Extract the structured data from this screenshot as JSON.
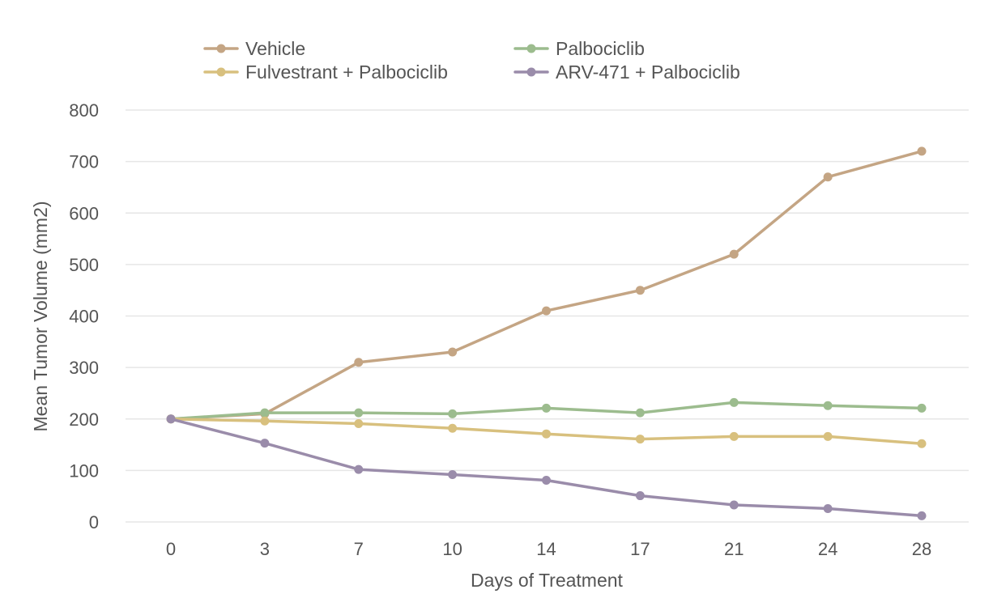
{
  "chart_data": {
    "type": "line",
    "title": "",
    "xlabel": "Days of Treatment",
    "ylabel": "Mean Tumor Volume (mm2)",
    "categories": [
      "0",
      "3",
      "7",
      "10",
      "14",
      "17",
      "21",
      "24",
      "28"
    ],
    "ylim": [
      0,
      800
    ],
    "yticks": [
      0,
      100,
      200,
      300,
      400,
      500,
      600,
      700,
      800
    ],
    "grid": true,
    "legend_position": "top",
    "series": [
      {
        "name": "Vehicle",
        "color": "#c4a584",
        "values": [
          200,
          210,
          310,
          330,
          410,
          450,
          520,
          670,
          720
        ]
      },
      {
        "name": "Palbociclib",
        "color": "#9cbc8e",
        "values": [
          200,
          212,
          212,
          210,
          221,
          212,
          232,
          226,
          221
        ]
      },
      {
        "name": "Fulvestrant + Palbociclib",
        "color": "#d8c07e",
        "values": [
          200,
          196,
          191,
          182,
          171,
          161,
          166,
          166,
          152
        ]
      },
      {
        "name": "ARV-471 + Palbociclib",
        "color": "#9a8caa",
        "values": [
          200,
          153,
          102,
          92,
          81,
          51,
          33,
          26,
          12
        ]
      }
    ]
  }
}
